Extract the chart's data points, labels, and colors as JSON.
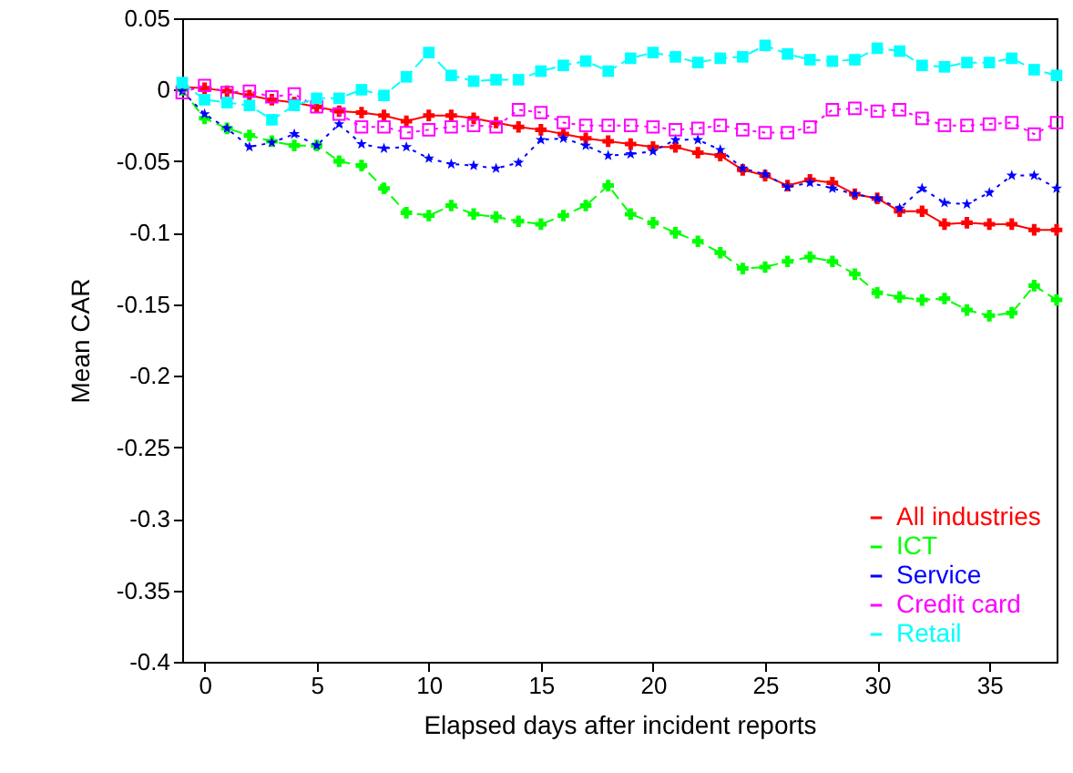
{
  "chart_data": {
    "type": "line",
    "xlabel": "Elapsed days after incident reports",
    "ylabel": "Mean CAR",
    "x": [
      -1,
      0,
      1,
      2,
      3,
      4,
      5,
      6,
      7,
      8,
      9,
      10,
      11,
      12,
      13,
      14,
      15,
      16,
      17,
      18,
      19,
      20,
      21,
      22,
      23,
      24,
      25,
      26,
      27,
      28,
      29,
      30,
      31,
      32,
      33,
      34,
      35,
      36,
      37,
      38
    ],
    "xlim": [
      -1,
      38
    ],
    "xticks": [
      0,
      5,
      10,
      15,
      20,
      25,
      30,
      35
    ],
    "ylim": [
      -0.4,
      0.05
    ],
    "yticks": [
      0.05,
      0,
      -0.05,
      -0.1,
      -0.15,
      -0.2,
      -0.25,
      -0.3,
      -0.35,
      -0.4
    ],
    "grid": false,
    "legend": "bottom right",
    "series": [
      {
        "name": "All industries",
        "color": "#ff0000",
        "marker": "cross",
        "line_style": "solid",
        "values": [
          0.002,
          0.001,
          -0.001,
          -0.004,
          -0.007,
          -0.009,
          -0.012,
          -0.015,
          -0.016,
          -0.018,
          -0.022,
          -0.018,
          -0.018,
          -0.02,
          -0.023,
          -0.026,
          -0.028,
          -0.031,
          -0.034,
          -0.036,
          -0.038,
          -0.04,
          -0.04,
          -0.044,
          -0.046,
          -0.056,
          -0.06,
          -0.067,
          -0.063,
          -0.065,
          -0.073,
          -0.076,
          -0.085,
          -0.085,
          -0.094,
          -0.093,
          -0.094,
          -0.094,
          -0.098,
          -0.098
        ]
      },
      {
        "name": "ICT",
        "color": "#00ff00",
        "marker": "cross",
        "line_style": "dashed",
        "values": [
          0.0,
          -0.02,
          -0.027,
          -0.032,
          -0.036,
          -0.039,
          -0.039,
          -0.05,
          -0.053,
          -0.069,
          -0.086,
          -0.088,
          -0.081,
          -0.087,
          -0.089,
          -0.092,
          -0.094,
          -0.088,
          -0.081,
          -0.067,
          -0.087,
          -0.093,
          -0.1,
          -0.106,
          -0.114,
          -0.125,
          -0.124,
          -0.12,
          -0.117,
          -0.12,
          -0.129,
          -0.142,
          -0.145,
          -0.147,
          -0.146,
          -0.154,
          -0.158,
          -0.156,
          -0.137,
          -0.147
        ]
      },
      {
        "name": "Service",
        "color": "#0000ff",
        "marker": "star",
        "line_style": "dotted",
        "values": [
          -0.001,
          -0.017,
          -0.027,
          -0.04,
          -0.037,
          -0.031,
          -0.039,
          -0.024,
          -0.038,
          -0.041,
          -0.04,
          -0.048,
          -0.052,
          -0.053,
          -0.055,
          -0.051,
          -0.035,
          -0.034,
          -0.039,
          -0.046,
          -0.045,
          -0.043,
          -0.035,
          -0.035,
          -0.042,
          -0.055,
          -0.059,
          -0.068,
          -0.065,
          -0.069,
          -0.073,
          -0.076,
          -0.083,
          -0.069,
          -0.079,
          -0.08,
          -0.072,
          -0.06,
          -0.06,
          -0.069
        ]
      },
      {
        "name": "Credit card",
        "color": "#ff00ff",
        "marker": "square",
        "line_style": "dotted",
        "values": [
          -0.002,
          0.003,
          -0.002,
          -0.001,
          -0.005,
          -0.003,
          -0.012,
          -0.017,
          -0.026,
          -0.026,
          -0.03,
          -0.028,
          -0.026,
          -0.025,
          -0.026,
          -0.014,
          -0.016,
          -0.023,
          -0.025,
          -0.025,
          -0.025,
          -0.026,
          -0.028,
          -0.027,
          -0.025,
          -0.028,
          -0.03,
          -0.03,
          -0.026,
          -0.014,
          -0.013,
          -0.015,
          -0.014,
          -0.02,
          -0.025,
          -0.025,
          -0.024,
          -0.023,
          -0.031,
          -0.023
        ]
      },
      {
        "name": "Retail",
        "color": "#00ffff",
        "marker": "square",
        "line_style": "dashed",
        "values": [
          0.005,
          -0.007,
          -0.009,
          -0.011,
          -0.021,
          -0.011,
          -0.006,
          -0.006,
          0.0,
          -0.004,
          0.009,
          0.026,
          0.01,
          0.006,
          0.007,
          0.007,
          0.013,
          0.017,
          0.02,
          0.013,
          0.022,
          0.026,
          0.023,
          0.019,
          0.022,
          0.023,
          0.031,
          0.025,
          0.021,
          0.02,
          0.021,
          0.029,
          0.027,
          0.017,
          0.016,
          0.019,
          0.019,
          0.022,
          0.014,
          0.01
        ]
      }
    ]
  }
}
